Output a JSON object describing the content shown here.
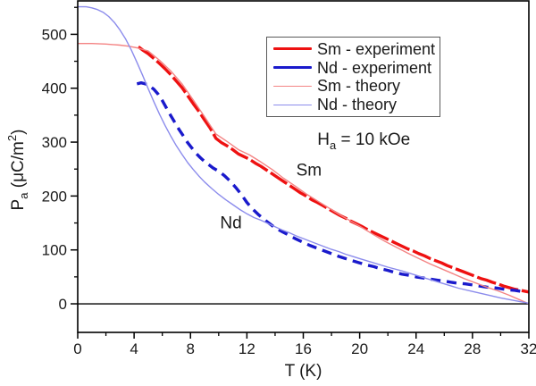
{
  "figure": {
    "background": "#ffffff",
    "frame_color": "#000000",
    "zero_line_color": "#000000"
  },
  "chart_data": {
    "type": "line",
    "title": "",
    "xlabel": "T (K)",
    "ylabel": "Pa (μC/m²)",
    "ylabel_parts": [
      {
        "t": "P"
      },
      {
        "t": "a",
        "style": "sub"
      },
      {
        "t": " (μC/m"
      },
      {
        "t": "2",
        "style": "sup"
      },
      {
        "t": ")"
      }
    ],
    "xlim": [
      0,
      32
    ],
    "ylim": [
      -53,
      562
    ],
    "x_major_ticks": [
      0,
      4,
      8,
      12,
      16,
      20,
      24,
      28,
      32
    ],
    "x_minor_ticks": [
      2,
      6,
      10,
      14,
      18,
      22,
      26,
      30
    ],
    "y_major_ticks": [
      0,
      100,
      200,
      300,
      400,
      500
    ],
    "y_minor_ticks": [
      50,
      150,
      250,
      350,
      450,
      550
    ],
    "grid": false,
    "zero_line_y": 0,
    "legend": {
      "position": "upper right",
      "items": [
        {
          "label": "Sm - experiment",
          "color": "#ee1111",
          "thickness": 3.4
        },
        {
          "label": "Nd - experiment",
          "color": "#1a1acc",
          "thickness": 3.4
        },
        {
          "label": "Sm - theory",
          "color": "#f48484",
          "thickness": 1.4
        },
        {
          "label": "Nd - theory",
          "color": "#8c8cec",
          "thickness": 1.4
        }
      ]
    },
    "annotations": [
      {
        "id": "field",
        "x": 17.0,
        "y": 305,
        "anchor": "start",
        "parts": [
          {
            "t": "H"
          },
          {
            "t": "a",
            "style": "sub"
          },
          {
            "t": " = 10 kOe"
          }
        ]
      },
      {
        "id": "label-sm",
        "x": 15.5,
        "y": 248,
        "anchor": "start",
        "parts": [
          {
            "t": "Sm"
          }
        ]
      },
      {
        "id": "label-nd",
        "x": 10.1,
        "y": 150,
        "anchor": "start",
        "parts": [
          {
            "t": "Nd"
          }
        ]
      }
    ],
    "series": [
      {
        "name": "Sm - experiment",
        "color": "#ee1111",
        "width": 3.4,
        "dash": "22 4",
        "points": [
          [
            4.3,
            477
          ],
          [
            4.6,
            471
          ],
          [
            5,
            464
          ],
          [
            5.4,
            455
          ],
          [
            5.8,
            446
          ],
          [
            6.2,
            436
          ],
          [
            6.6,
            425
          ],
          [
            7,
            413
          ],
          [
            7.4,
            401
          ],
          [
            7.8,
            386
          ],
          [
            8.2,
            371
          ],
          [
            8.6,
            357
          ],
          [
            9,
            341
          ],
          [
            9.4,
            326
          ],
          [
            9.8,
            307
          ],
          [
            10.2,
            299
          ],
          [
            10.6,
            293
          ],
          [
            11,
            286
          ],
          [
            11.4,
            278
          ],
          [
            11.8,
            273
          ],
          [
            12.2,
            268
          ],
          [
            12.6,
            261
          ],
          [
            13,
            255
          ],
          [
            13.4,
            248
          ],
          [
            13.8,
            241
          ],
          [
            14.2,
            234
          ],
          [
            14.6,
            227
          ],
          [
            15,
            220
          ],
          [
            15.4,
            213
          ],
          [
            15.8,
            206
          ],
          [
            16.2,
            200
          ],
          [
            16.6,
            193
          ],
          [
            17,
            188
          ],
          [
            17.4,
            182
          ],
          [
            17.8,
            176
          ],
          [
            18.2,
            170
          ],
          [
            18.6,
            164
          ],
          [
            19,
            159
          ],
          [
            19.4,
            153
          ],
          [
            19.8,
            148
          ],
          [
            20.2,
            143
          ],
          [
            20.6,
            137
          ],
          [
            21,
            132
          ],
          [
            21.4,
            127
          ],
          [
            21.8,
            122
          ],
          [
            22.2,
            117
          ],
          [
            22.6,
            112
          ],
          [
            23,
            107
          ],
          [
            23.4,
            102
          ],
          [
            23.8,
            98
          ],
          [
            24.2,
            93
          ],
          [
            24.6,
            89
          ],
          [
            25,
            84
          ],
          [
            25.4,
            80
          ],
          [
            25.8,
            76
          ],
          [
            26.2,
            71
          ],
          [
            26.6,
            67
          ],
          [
            27,
            63
          ],
          [
            27.4,
            59
          ],
          [
            27.8,
            55
          ],
          [
            28.2,
            51
          ],
          [
            28.6,
            47
          ],
          [
            29,
            44
          ],
          [
            29.4,
            40
          ],
          [
            29.8,
            37
          ],
          [
            30.2,
            33
          ],
          [
            30.6,
            30
          ],
          [
            31,
            27
          ],
          [
            31.4,
            25
          ],
          [
            31.8,
            23
          ],
          [
            32,
            22
          ]
        ]
      },
      {
        "name": "Nd - experiment",
        "color": "#1a1acc",
        "width": 3.4,
        "dash": "11 7",
        "points": [
          [
            4.2,
            408
          ],
          [
            4.5,
            410
          ],
          [
            4.8,
            408
          ],
          [
            5.1,
            404
          ],
          [
            5.4,
            398
          ],
          [
            5.7,
            389
          ],
          [
            6,
            377
          ],
          [
            6.3,
            363
          ],
          [
            6.6,
            349
          ],
          [
            6.9,
            336
          ],
          [
            7.2,
            323
          ],
          [
            7.5,
            311
          ],
          [
            7.8,
            299
          ],
          [
            8.1,
            289
          ],
          [
            8.4,
            279
          ],
          [
            8.7,
            271
          ],
          [
            9,
            264
          ],
          [
            9.3,
            258
          ],
          [
            9.6,
            252
          ],
          [
            10,
            246
          ],
          [
            10.4,
            238
          ],
          [
            10.8,
            228
          ],
          [
            11.2,
            216
          ],
          [
            11.6,
            203
          ],
          [
            12,
            188
          ],
          [
            12.4,
            176
          ],
          [
            12.8,
            166
          ],
          [
            13.2,
            157
          ],
          [
            13.6,
            149
          ],
          [
            14,
            141
          ],
          [
            14.5,
            134
          ],
          [
            15,
            127
          ],
          [
            15.5,
            120
          ],
          [
            16,
            114
          ],
          [
            16.5,
            108
          ],
          [
            17,
            103
          ],
          [
            17.5,
            98
          ],
          [
            18,
            93
          ],
          [
            18.5,
            88
          ],
          [
            19,
            84
          ],
          [
            19.5,
            80
          ],
          [
            20,
            76
          ],
          [
            20.5,
            72
          ],
          [
            21,
            69
          ],
          [
            21.5,
            65
          ],
          [
            22,
            62
          ],
          [
            22.5,
            58
          ],
          [
            23,
            55
          ],
          [
            23.5,
            53
          ],
          [
            24,
            50
          ],
          [
            24.5,
            48
          ],
          [
            25,
            46
          ],
          [
            25.5,
            44
          ],
          [
            26,
            42
          ],
          [
            26.5,
            40
          ],
          [
            27,
            38
          ],
          [
            27.5,
            37
          ],
          [
            28,
            35
          ],
          [
            28.5,
            33
          ],
          [
            29,
            31
          ],
          [
            29.5,
            30
          ],
          [
            30,
            28
          ],
          [
            30.5,
            26
          ],
          [
            31,
            25
          ],
          [
            31.5,
            23
          ],
          [
            31.8,
            21
          ]
        ]
      },
      {
        "name": "Sm - theory",
        "color": "#f48484",
        "width": 1.4,
        "dash": null,
        "points": [
          [
            0,
            483
          ],
          [
            1,
            483
          ],
          [
            2,
            482
          ],
          [
            3,
            480
          ],
          [
            3.6,
            478
          ],
          [
            4.2,
            475
          ],
          [
            5,
            469
          ],
          [
            5.8,
            452
          ],
          [
            6.6,
            432
          ],
          [
            7.4,
            408
          ],
          [
            8.2,
            378
          ],
          [
            9,
            347
          ],
          [
            9.8,
            315
          ],
          [
            10.6,
            301
          ],
          [
            11.4,
            286
          ],
          [
            12.2,
            276
          ],
          [
            13,
            263
          ],
          [
            13.8,
            249
          ],
          [
            14.6,
            233
          ],
          [
            15.4,
            219
          ],
          [
            16.2,
            204
          ],
          [
            17,
            191
          ],
          [
            17.8,
            178
          ],
          [
            18.6,
            165
          ],
          [
            19.4,
            153
          ],
          [
            20.2,
            141
          ],
          [
            21,
            128
          ],
          [
            21.8,
            116
          ],
          [
            22.6,
            105
          ],
          [
            23.4,
            94
          ],
          [
            24.2,
            84
          ],
          [
            25,
            74
          ],
          [
            25.8,
            65
          ],
          [
            26.6,
            56
          ],
          [
            27.4,
            47
          ],
          [
            28.2,
            39
          ],
          [
            29,
            31
          ],
          [
            29.8,
            24
          ],
          [
            30.6,
            16
          ],
          [
            31.3,
            8
          ],
          [
            32,
            0
          ]
        ]
      },
      {
        "name": "Nd - theory",
        "color": "#8c8cec",
        "width": 1.4,
        "dash": null,
        "points": [
          [
            0,
            551
          ],
          [
            0.6,
            551
          ],
          [
            1,
            549
          ],
          [
            1.4,
            546
          ],
          [
            1.8,
            541
          ],
          [
            2.2,
            533
          ],
          [
            2.6,
            522
          ],
          [
            3,
            508
          ],
          [
            3.4,
            491
          ],
          [
            3.8,
            471
          ],
          [
            4.2,
            448
          ],
          [
            4.6,
            424
          ],
          [
            5,
            399
          ],
          [
            5.4,
            375
          ],
          [
            5.8,
            352
          ],
          [
            6.2,
            331
          ],
          [
            6.6,
            311
          ],
          [
            7,
            293
          ],
          [
            7.4,
            277
          ],
          [
            7.8,
            262
          ],
          [
            8.2,
            249
          ],
          [
            8.6,
            237
          ],
          [
            9,
            226
          ],
          [
            9.5,
            214
          ],
          [
            10,
            203
          ],
          [
            10.5,
            193
          ],
          [
            11,
            184
          ],
          [
            11.5,
            175
          ],
          [
            12,
            167
          ],
          [
            12.5,
            160
          ],
          [
            13,
            155
          ],
          [
            13.5,
            149
          ],
          [
            14,
            143
          ],
          [
            14.5,
            137
          ],
          [
            15,
            132
          ],
          [
            15.5,
            126
          ],
          [
            16,
            121
          ],
          [
            16.5,
            116
          ],
          [
            17,
            111
          ],
          [
            17.5,
            106
          ],
          [
            18,
            101
          ],
          [
            18.5,
            97
          ],
          [
            19,
            92
          ],
          [
            19.5,
            88
          ],
          [
            20,
            84
          ],
          [
            21,
            76
          ],
          [
            22,
            68
          ],
          [
            23,
            61
          ],
          [
            24,
            53
          ],
          [
            25,
            45
          ],
          [
            26,
            37
          ],
          [
            27,
            29
          ],
          [
            28,
            23
          ],
          [
            29,
            17
          ],
          [
            30,
            11
          ],
          [
            31,
            6
          ],
          [
            32,
            1
          ]
        ]
      }
    ]
  }
}
